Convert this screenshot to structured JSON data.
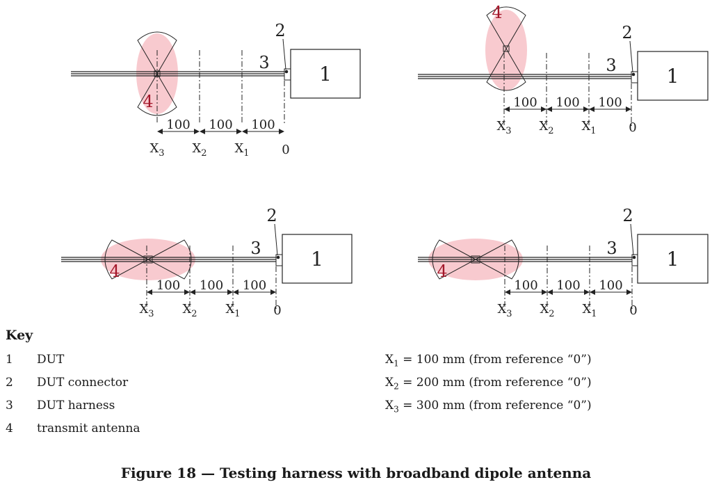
{
  "panels": [
    {
      "id": "a",
      "antenna_orientation": "vertical",
      "antenna_position": "X3",
      "antenna_label_side": "below"
    },
    {
      "id": "b",
      "antenna_orientation": "vertical",
      "antenna_position": "X3",
      "antenna_label_side": "above"
    },
    {
      "id": "c",
      "antenna_orientation": "horizontal",
      "antenna_position": "X3",
      "antenna_label_side": "left"
    },
    {
      "id": "d",
      "antenna_orientation": "horizontal",
      "antenna_position": "X3",
      "antenna_label_side": "left"
    }
  ],
  "labels": {
    "dut": "1",
    "connector": "2",
    "harness": "3",
    "antenna": "4",
    "spacing": "100",
    "x_base": "X",
    "x1_sub": "1",
    "x2_sub": "2",
    "x3_sub": "3",
    "origin": "0"
  },
  "colors": {
    "antenna_fill": "#f5b8bf",
    "antenna_label": "#a3172a",
    "line": "#222222"
  },
  "key": {
    "title": "Key",
    "items": [
      {
        "num": "1",
        "text": "DUT"
      },
      {
        "num": "2",
        "text": "DUT connector"
      },
      {
        "num": "3",
        "text": "DUT harness"
      },
      {
        "num": "4",
        "text": "transmit antenna"
      }
    ]
  },
  "definitions": [
    {
      "base": "X",
      "sub": "1",
      "text": " = 100 mm (from reference “0”)"
    },
    {
      "base": "X",
      "sub": "2",
      "text": " = 200 mm (from reference “0”)"
    },
    {
      "base": "X",
      "sub": "3",
      "text": " = 300 mm (from reference “0”)"
    }
  ],
  "caption": "Figure 18 — Testing harness with broadband dipole antenna"
}
